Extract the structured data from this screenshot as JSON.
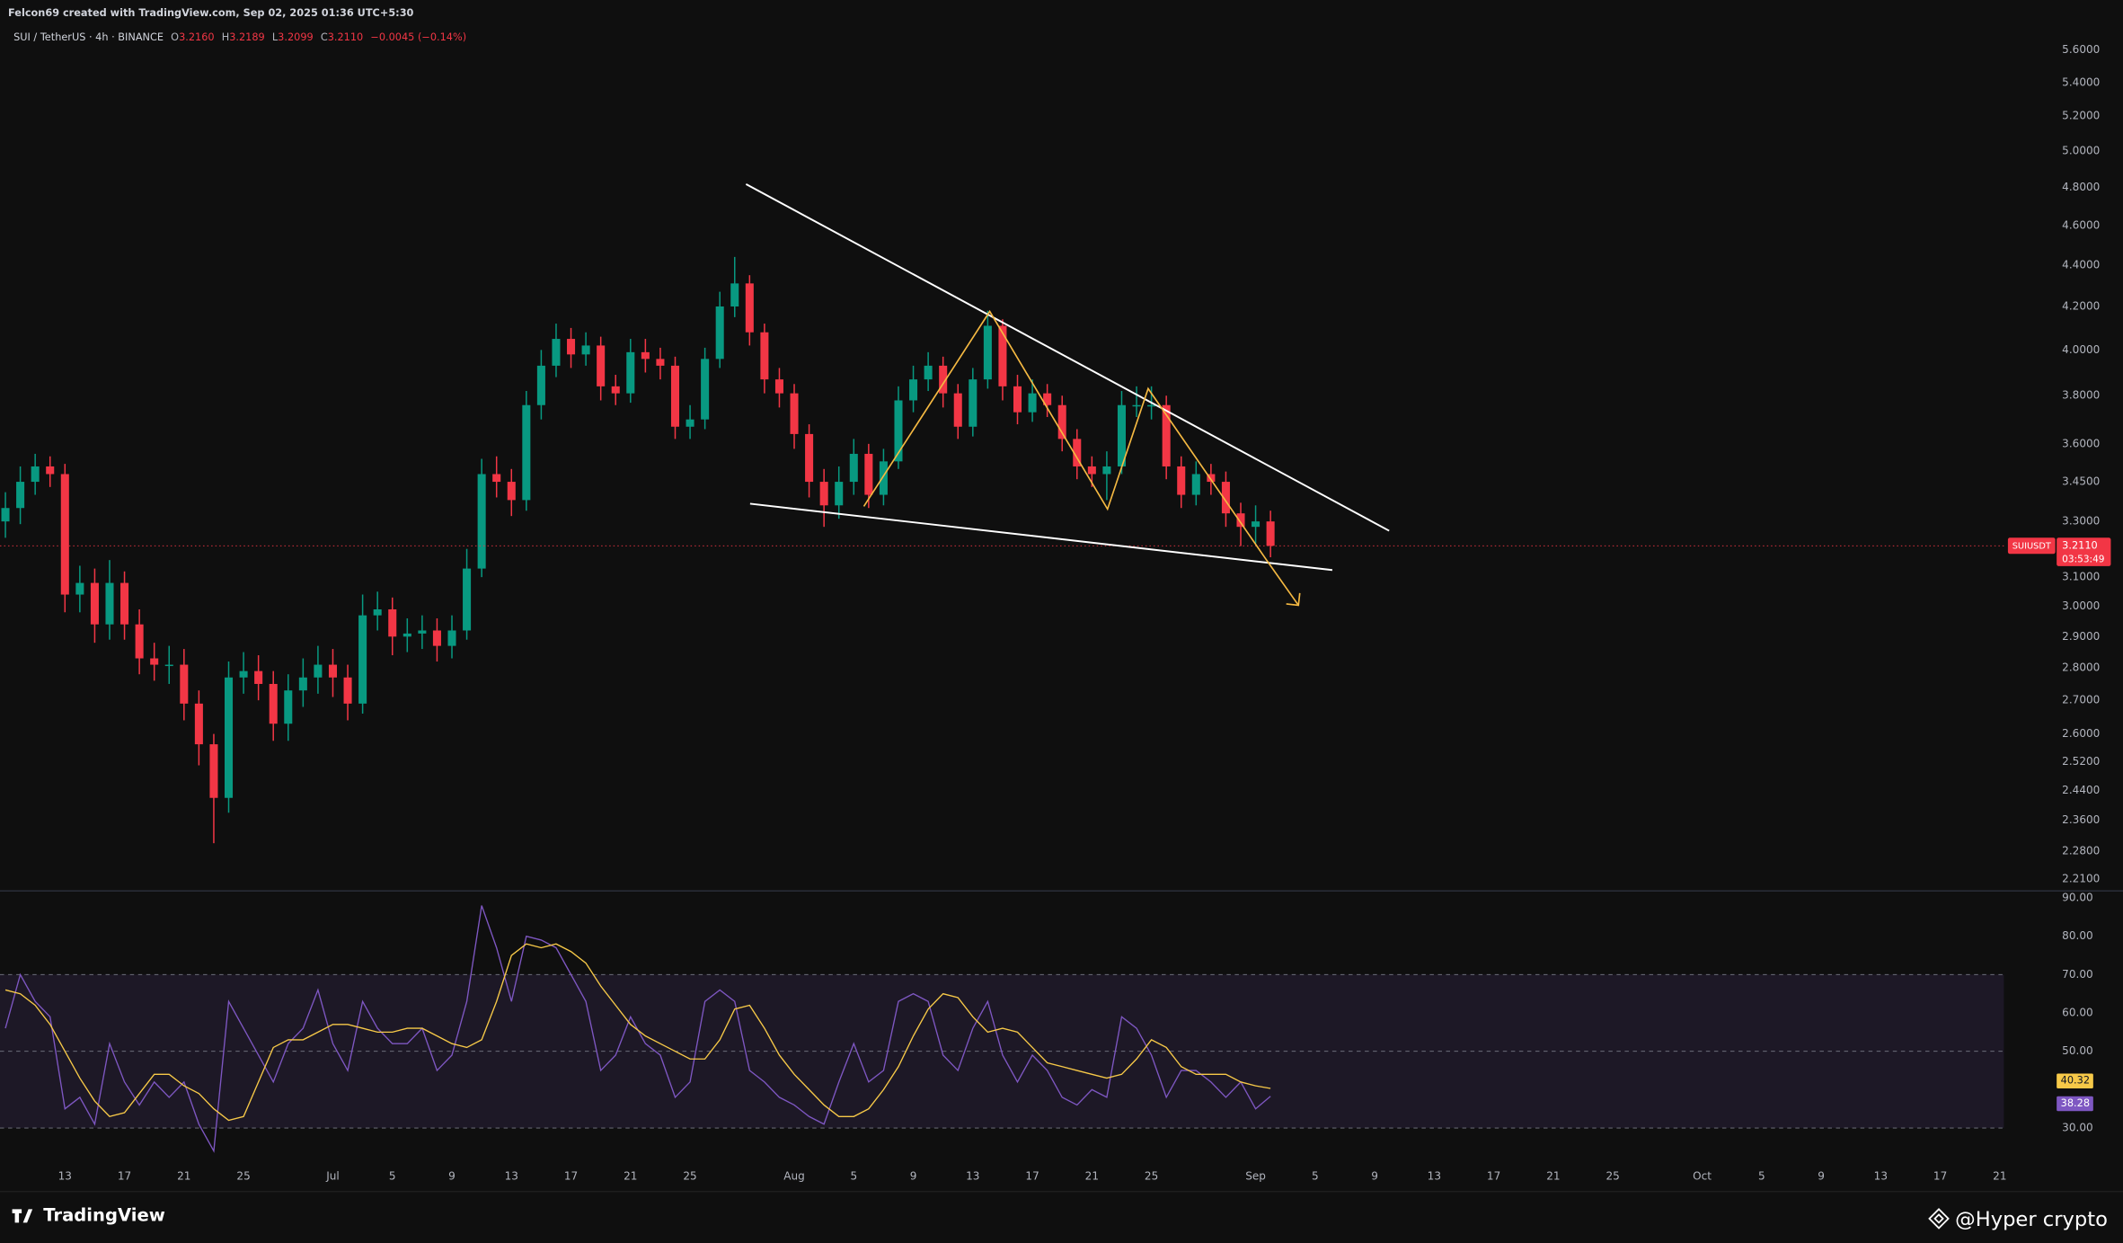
{
  "header": {
    "credit": "Felcon69 created with TradingView.com, Sep 02, 2025 01:36 UTC+5:30",
    "symbol": "SUI / TetherUS · 4h · BINANCE",
    "ohlc": [
      {
        "label": "O",
        "value": "3.2160"
      },
      {
        "label": "H",
        "value": "3.2189"
      },
      {
        "label": "L",
        "value": "3.2099"
      },
      {
        "label": "C",
        "value": "3.2110"
      }
    ],
    "change": "−0.0045 (−0.14%)"
  },
  "price_tag": {
    "symbol": "SUIUSDT",
    "price": "3.2110",
    "countdown": "03:53:49"
  },
  "footer": {
    "brand": "TradingView",
    "watermark": "@Hyper crypto"
  },
  "chart_data": [
    {
      "type": "candlestick",
      "x": [
        "2025-06-09",
        "2025-06-10",
        "2025-06-11",
        "2025-06-12",
        "2025-06-13",
        "2025-06-14",
        "2025-06-15",
        "2025-06-16",
        "2025-06-17",
        "2025-06-18",
        "2025-06-19",
        "2025-06-20",
        "2025-06-21",
        "2025-06-22",
        "2025-06-23",
        "2025-06-24",
        "2025-06-25",
        "2025-06-26",
        "2025-06-27",
        "2025-06-28",
        "2025-06-29",
        "2025-06-30",
        "2025-07-01",
        "2025-07-02",
        "2025-07-03",
        "2025-07-04",
        "2025-07-05",
        "2025-07-06",
        "2025-07-07",
        "2025-07-08",
        "2025-07-09",
        "2025-07-10",
        "2025-07-11",
        "2025-07-12",
        "2025-07-13",
        "2025-07-14",
        "2025-07-15",
        "2025-07-16",
        "2025-07-17",
        "2025-07-18",
        "2025-07-19",
        "2025-07-20",
        "2025-07-21",
        "2025-07-22",
        "2025-07-23",
        "2025-07-24",
        "2025-07-25",
        "2025-07-26",
        "2025-07-27",
        "2025-07-28",
        "2025-07-29",
        "2025-07-30",
        "2025-07-31",
        "2025-08-01",
        "2025-08-02",
        "2025-08-03",
        "2025-08-04",
        "2025-08-05",
        "2025-08-06",
        "2025-08-07",
        "2025-08-08",
        "2025-08-09",
        "2025-08-10",
        "2025-08-11",
        "2025-08-12",
        "2025-08-13",
        "2025-08-14",
        "2025-08-15",
        "2025-08-16",
        "2025-08-17",
        "2025-08-18",
        "2025-08-19",
        "2025-08-20",
        "2025-08-21",
        "2025-08-22",
        "2025-08-23",
        "2025-08-24",
        "2025-08-25",
        "2025-08-26",
        "2025-08-27",
        "2025-08-28",
        "2025-08-29",
        "2025-08-30",
        "2025-08-31",
        "2025-09-01",
        "2025-09-02"
      ],
      "open": [
        3.3,
        3.35,
        3.45,
        3.51,
        3.48,
        3.04,
        3.08,
        2.94,
        3.08,
        2.94,
        2.83,
        2.81,
        2.81,
        2.69,
        2.57,
        2.42,
        2.77,
        2.79,
        2.75,
        2.63,
        2.73,
        2.77,
        2.81,
        2.77,
        2.69,
        2.97,
        2.99,
        2.9,
        2.91,
        2.92,
        2.87,
        2.92,
        3.13,
        3.48,
        3.45,
        3.38,
        3.76,
        3.93,
        4.05,
        3.98,
        4.02,
        3.84,
        3.81,
        3.99,
        3.96,
        3.93,
        3.67,
        3.7,
        3.96,
        4.2,
        4.31,
        4.08,
        3.87,
        3.81,
        3.64,
        3.45,
        3.36,
        3.45,
        3.56,
        3.4,
        3.53,
        3.78,
        3.87,
        3.93,
        3.81,
        3.67,
        3.87,
        4.11,
        3.84,
        3.73,
        3.81,
        3.76,
        3.62,
        3.51,
        3.48,
        3.51,
        3.76,
        3.76,
        3.76,
        3.51,
        3.4,
        3.48,
        3.45,
        3.33,
        3.28,
        3.3
      ],
      "high": [
        3.41,
        3.51,
        3.56,
        3.55,
        3.52,
        3.14,
        3.13,
        3.16,
        3.12,
        2.99,
        2.88,
        2.87,
        2.86,
        2.73,
        2.6,
        2.82,
        2.85,
        2.84,
        2.79,
        2.78,
        2.83,
        2.87,
        2.86,
        2.81,
        3.04,
        3.05,
        3.03,
        2.96,
        2.97,
        2.96,
        2.97,
        3.2,
        3.54,
        3.55,
        3.5,
        3.82,
        4.0,
        4.12,
        4.1,
        4.08,
        4.06,
        3.89,
        4.05,
        4.05,
        4.01,
        3.97,
        3.76,
        4.01,
        4.27,
        4.44,
        4.35,
        4.12,
        3.92,
        3.85,
        3.68,
        3.5,
        3.51,
        3.62,
        3.6,
        3.58,
        3.84,
        3.93,
        3.99,
        3.97,
        3.85,
        3.92,
        4.18,
        4.14,
        3.89,
        3.87,
        3.85,
        3.8,
        3.66,
        3.55,
        3.57,
        3.82,
        3.84,
        3.84,
        3.8,
        3.55,
        3.53,
        3.52,
        3.49,
        3.37,
        3.36,
        3.34
      ],
      "low": [
        3.24,
        3.29,
        3.4,
        3.43,
        2.98,
        2.98,
        2.88,
        2.89,
        2.89,
        2.78,
        2.76,
        2.75,
        2.64,
        2.51,
        2.3,
        2.38,
        2.72,
        2.7,
        2.58,
        2.58,
        2.68,
        2.72,
        2.71,
        2.64,
        2.66,
        2.92,
        2.84,
        2.85,
        2.86,
        2.82,
        2.83,
        2.89,
        3.1,
        3.39,
        3.32,
        3.34,
        3.7,
        3.88,
        3.92,
        3.93,
        3.78,
        3.76,
        3.77,
        3.9,
        3.87,
        3.62,
        3.62,
        3.66,
        3.92,
        4.15,
        4.02,
        3.81,
        3.75,
        3.58,
        3.39,
        3.28,
        3.31,
        3.4,
        3.35,
        3.36,
        3.5,
        3.73,
        3.82,
        3.75,
        3.62,
        3.63,
        3.83,
        3.78,
        3.68,
        3.69,
        3.71,
        3.57,
        3.46,
        3.43,
        3.38,
        3.48,
        3.71,
        3.7,
        3.46,
        3.35,
        3.36,
        3.4,
        3.28,
        3.21,
        3.22,
        3.17
      ],
      "close": [
        3.35,
        3.45,
        3.51,
        3.48,
        3.04,
        3.08,
        2.94,
        3.08,
        2.94,
        2.83,
        2.81,
        2.81,
        2.69,
        2.57,
        2.42,
        2.77,
        2.79,
        2.75,
        2.63,
        2.73,
        2.77,
        2.81,
        2.77,
        2.69,
        2.97,
        2.99,
        2.9,
        2.91,
        2.92,
        2.87,
        2.92,
        3.13,
        3.48,
        3.45,
        3.38,
        3.76,
        3.93,
        4.05,
        3.98,
        4.02,
        3.84,
        3.81,
        3.99,
        3.96,
        3.93,
        3.67,
        3.7,
        3.96,
        4.2,
        4.31,
        4.08,
        3.87,
        3.81,
        3.64,
        3.45,
        3.36,
        3.45,
        3.56,
        3.4,
        3.53,
        3.78,
        3.87,
        3.93,
        3.81,
        3.67,
        3.87,
        4.11,
        3.84,
        3.73,
        3.81,
        3.76,
        3.62,
        3.51,
        3.48,
        3.51,
        3.76,
        3.76,
        3.76,
        3.51,
        3.4,
        3.48,
        3.45,
        3.33,
        3.28,
        3.3,
        3.211
      ],
      "up_color": "#089981",
      "down_color": "#f23645",
      "xlim": [
        "2025-06-09",
        "2025-10-21"
      ],
      "ylim": [
        2.19,
        5.79
      ],
      "log_scale": true,
      "yticks": [
        {
          "value": 5.6,
          "label": "5.6000"
        },
        {
          "value": 5.4,
          "label": "5.4000"
        },
        {
          "value": 5.2,
          "label": "5.2000"
        },
        {
          "value": 5.0,
          "label": "5.0000"
        },
        {
          "value": 4.8,
          "label": "4.8000"
        },
        {
          "value": 4.6,
          "label": "4.6000"
        },
        {
          "value": 4.4,
          "label": "4.4000"
        },
        {
          "value": 4.2,
          "label": "4.2000"
        },
        {
          "value": 4.0,
          "label": "4.0000"
        },
        {
          "value": 3.8,
          "label": "3.8000"
        },
        {
          "value": 3.6,
          "label": "3.6000"
        },
        {
          "value": 3.45,
          "label": "3.4500"
        },
        {
          "value": 3.3,
          "label": "3.3000"
        },
        {
          "value": 3.1,
          "label": "3.1000"
        },
        {
          "value": 3.0,
          "label": "3.0000"
        },
        {
          "value": 2.9,
          "label": "2.9000"
        },
        {
          "value": 2.8,
          "label": "2.8000"
        },
        {
          "value": 2.7,
          "label": "2.7000"
        },
        {
          "value": 2.6,
          "label": "2.6000"
        },
        {
          "value": 2.52,
          "label": "2.5200"
        },
        {
          "value": 2.44,
          "label": "2.4400"
        },
        {
          "value": 2.36,
          "label": "2.3600"
        },
        {
          "value": 2.28,
          "label": "2.2800"
        },
        {
          "value": 2.21,
          "label": "2.2100"
        }
      ]
    },
    {
      "type": "line",
      "x": [
        "2025-06-09",
        "2025-06-10",
        "2025-06-11",
        "2025-06-12",
        "2025-06-13",
        "2025-06-14",
        "2025-06-15",
        "2025-06-16",
        "2025-06-17",
        "2025-06-18",
        "2025-06-19",
        "2025-06-20",
        "2025-06-21",
        "2025-06-22",
        "2025-06-23",
        "2025-06-24",
        "2025-06-25",
        "2025-06-26",
        "2025-06-27",
        "2025-06-28",
        "2025-06-29",
        "2025-06-30",
        "2025-07-01",
        "2025-07-02",
        "2025-07-03",
        "2025-07-04",
        "2025-07-05",
        "2025-07-06",
        "2025-07-07",
        "2025-07-08",
        "2025-07-09",
        "2025-07-10",
        "2025-07-11",
        "2025-07-12",
        "2025-07-13",
        "2025-07-14",
        "2025-07-15",
        "2025-07-16",
        "2025-07-17",
        "2025-07-18",
        "2025-07-19",
        "2025-07-20",
        "2025-07-21",
        "2025-07-22",
        "2025-07-23",
        "2025-07-24",
        "2025-07-25",
        "2025-07-26",
        "2025-07-27",
        "2025-07-28",
        "2025-07-29",
        "2025-07-30",
        "2025-07-31",
        "2025-08-01",
        "2025-08-02",
        "2025-08-03",
        "2025-08-04",
        "2025-08-05",
        "2025-08-06",
        "2025-08-07",
        "2025-08-08",
        "2025-08-09",
        "2025-08-10",
        "2025-08-11",
        "2025-08-12",
        "2025-08-13",
        "2025-08-14",
        "2025-08-15",
        "2025-08-16",
        "2025-08-17",
        "2025-08-18",
        "2025-08-19",
        "2025-08-20",
        "2025-08-21",
        "2025-08-22",
        "2025-08-23",
        "2025-08-24",
        "2025-08-25",
        "2025-08-26",
        "2025-08-27",
        "2025-08-28",
        "2025-08-29",
        "2025-08-30",
        "2025-08-31",
        "2025-09-01",
        "2025-09-02"
      ],
      "series": [
        {
          "color": "#7e57c2",
          "values": [
            56,
            70,
            63,
            59,
            35,
            38,
            31,
            52,
            42,
            36,
            42,
            38,
            42,
            31,
            24,
            63,
            56,
            49,
            42,
            52,
            56,
            66,
            52,
            45,
            63,
            56,
            52,
            52,
            56,
            45,
            49,
            63,
            88,
            77,
            63,
            80,
            79,
            77,
            70,
            63,
            45,
            49,
            59,
            52,
            49,
            38,
            42,
            63,
            66,
            63,
            45,
            42,
            38,
            36,
            33,
            31,
            42,
            52,
            42,
            45,
            63,
            65,
            63,
            49,
            45,
            56,
            63,
            49,
            42,
            49,
            45,
            38,
            36,
            40,
            38,
            59,
            56,
            49,
            38,
            45,
            45,
            42,
            38,
            42,
            35,
            38.28
          ]
        },
        {
          "color": "#f7c948",
          "values": [
            66,
            65,
            62,
            57,
            50,
            43,
            37,
            33,
            34,
            39,
            44,
            44,
            41,
            39,
            35,
            32,
            33,
            42,
            51,
            53,
            53,
            55,
            57,
            57,
            56,
            55,
            55,
            56,
            56,
            54,
            52,
            51,
            53,
            63,
            75,
            78,
            77,
            78,
            76,
            73,
            67,
            62,
            57,
            54,
            52,
            50,
            48,
            48,
            53,
            61,
            62,
            56,
            49,
            44,
            40,
            36,
            33,
            33,
            35,
            40,
            46,
            54,
            61,
            65,
            64,
            59,
            55,
            56,
            55,
            51,
            47,
            46,
            45,
            44,
            43,
            44,
            48,
            53,
            51,
            46,
            44,
            44,
            44,
            42,
            41,
            40.32
          ]
        }
      ],
      "levels": [
        70,
        50,
        30
      ],
      "xlim": [
        "2025-06-09",
        "2025-10-21"
      ],
      "ylim": [
        21.2,
        91.1
      ],
      "yticks": [
        {
          "value": 90,
          "label": "90.00"
        },
        {
          "value": 80,
          "label": "80.00"
        },
        {
          "value": 70,
          "label": "70.00"
        },
        {
          "value": 60,
          "label": "60.00"
        },
        {
          "value": 50,
          "label": "50.00"
        },
        {
          "value": 30,
          "label": "30.00"
        }
      ],
      "xticks": [
        {
          "value": "2025-06-13",
          "label": "13"
        },
        {
          "value": "2025-06-17",
          "label": "17"
        },
        {
          "value": "2025-06-21",
          "label": "21"
        },
        {
          "value": "2025-06-25",
          "label": "25"
        },
        {
          "value": "2025-07-01",
          "label": "Jul"
        },
        {
          "value": "2025-07-05",
          "label": "5"
        },
        {
          "value": "2025-07-09",
          "label": "9"
        },
        {
          "value": "2025-07-13",
          "label": "13"
        },
        {
          "value": "2025-07-17",
          "label": "17"
        },
        {
          "value": "2025-07-21",
          "label": "21"
        },
        {
          "value": "2025-07-25",
          "label": "25"
        },
        {
          "value": "2025-08-01",
          "label": "Aug"
        },
        {
          "value": "2025-08-05",
          "label": "5"
        },
        {
          "value": "2025-08-09",
          "label": "9"
        },
        {
          "value": "2025-08-13",
          "label": "13"
        },
        {
          "value": "2025-08-17",
          "label": "17"
        },
        {
          "value": "2025-08-21",
          "label": "21"
        },
        {
          "value": "2025-08-25",
          "label": "25"
        },
        {
          "value": "2025-09-01",
          "label": "Sep"
        },
        {
          "value": "2025-09-05",
          "label": "5"
        },
        {
          "value": "2025-09-09",
          "label": "9"
        },
        {
          "value": "2025-09-13",
          "label": "13"
        },
        {
          "value": "2025-09-17",
          "label": "17"
        },
        {
          "value": "2025-09-21",
          "label": "21"
        },
        {
          "value": "2025-09-25",
          "label": "25"
        },
        {
          "value": "2025-10-01",
          "label": "Oct"
        },
        {
          "value": "2025-10-05",
          "label": "5"
        },
        {
          "value": "2025-10-09",
          "label": "9"
        },
        {
          "value": "2025-10-13",
          "label": "13"
        },
        {
          "value": "2025-10-17",
          "label": "17"
        },
        {
          "value": "2025-10-21",
          "label": "21"
        }
      ]
    }
  ]
}
